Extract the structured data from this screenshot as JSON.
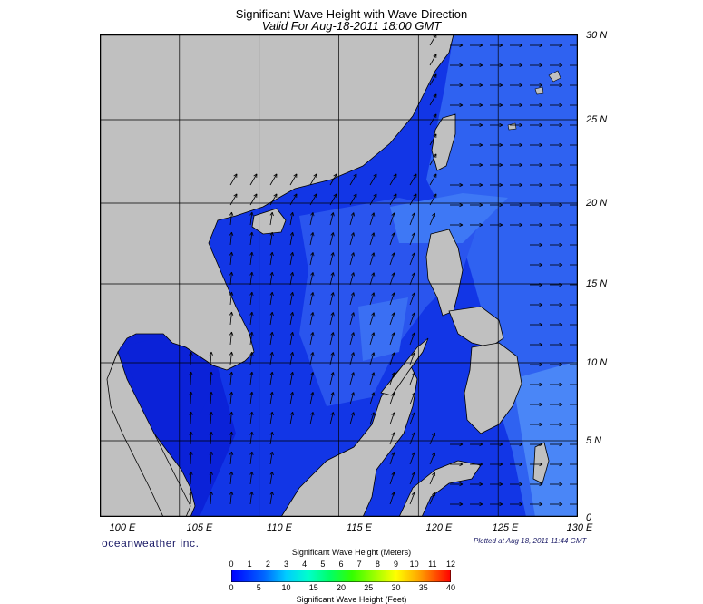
{
  "title": "Significant Wave Height with Wave Direction",
  "subtitle": "Valid For Aug-18-2011 18:00 GMT",
  "lat_labels": [
    "30 N",
    "25 N",
    "20 N",
    "15 N",
    "10 N",
    "5 N",
    "0"
  ],
  "lon_labels": [
    "100 E",
    "105 E",
    "110 E",
    "115 E",
    "120 E",
    "125 E",
    "130 E"
  ],
  "brand": "oceanweather inc.",
  "plotted": "Plotted at Aug 18, 2011 11:44 GMT",
  "colorbar": {
    "title_meters": "Significant Wave Height (Meters)",
    "title_feet": "Significant Wave Height (Feet)",
    "meter_ticks": [
      "0",
      "1",
      "2",
      "3",
      "4",
      "5",
      "6",
      "7",
      "8",
      "9",
      "10",
      "11",
      "12"
    ],
    "feet_ticks": [
      "0",
      "5",
      "10",
      "15",
      "20",
      "25",
      "30",
      "35",
      "40"
    ]
  },
  "colors": {
    "land": "#c0c0c0",
    "ocean_low": "#0a1fd6",
    "ocean_mid": "#2e63f2",
    "ocean_high": "#4a86f7",
    "grid": "#000000"
  }
}
